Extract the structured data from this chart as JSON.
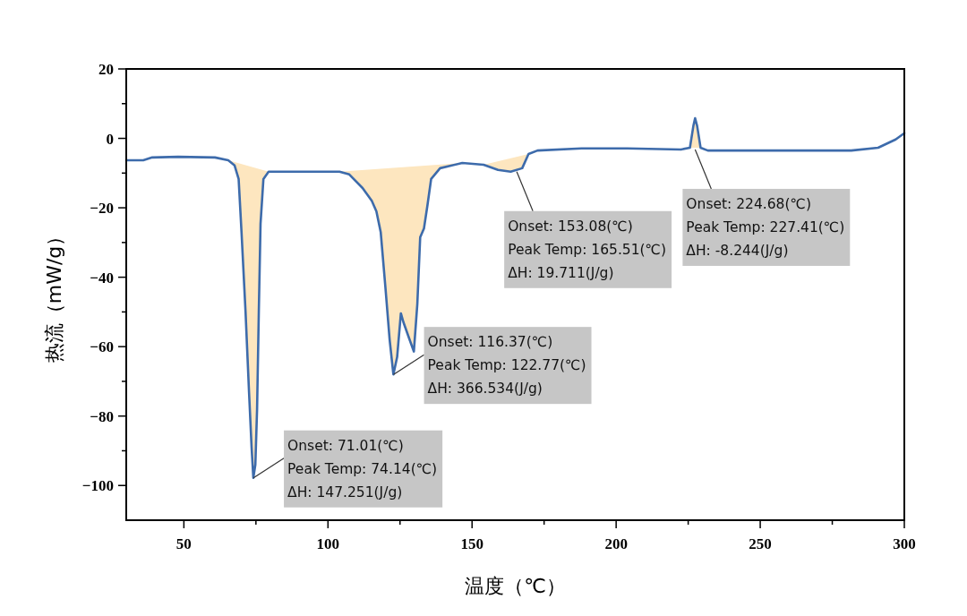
{
  "chart_data": {
    "type": "line",
    "xlabel": "温度（℃）",
    "ylabel": "热流（mW/g）",
    "xlim": [
      30,
      300
    ],
    "ylim": [
      -110,
      20
    ],
    "xticks": [
      50,
      {
        "value": 75,
        "label": null
      },
      100,
      {
        "value": 125,
        "label": null
      },
      150,
      {
        "value": 175,
        "label": null
      },
      200,
      {
        "value": 225,
        "label": null
      },
      250,
      {
        "value": 275,
        "label": null
      },
      300
    ],
    "yticks": [
      {
        "value": -100,
        "label": "−100"
      },
      {
        "value": -90,
        "label": null
      },
      {
        "value": -80,
        "label": "−80"
      },
      {
        "value": -70,
        "label": null
      },
      {
        "value": -60,
        "label": "−60"
      },
      {
        "value": -50,
        "label": null
      },
      {
        "value": -40,
        "label": "−40"
      },
      {
        "value": -30,
        "label": null
      },
      {
        "value": -20,
        "label": "−20"
      },
      {
        "value": -10,
        "label": null
      },
      0,
      {
        "value": 10,
        "label": null
      },
      20
    ],
    "series": [
      {
        "type": "area",
        "color": "#fde6bf",
        "x": [
          65.4,
          67.6,
          69,
          70,
          71.4,
          72.6,
          73.5,
          74.1,
          74.8,
          75.4,
          76,
          76.6,
          77.6,
          79.4,
          null,
          104,
          107.4,
          112,
          115.2,
          116.8,
          118.3,
          119.9,
          121.4,
          122.7,
          124,
          125.3,
          126.2,
          127.9,
          129.8,
          131,
          132,
          133.3,
          134.5,
          135.8,
          138.9,
          146.6,
          null,
          154,
          159,
          163.4,
          167.4,
          169.6,
          null,
          225.6,
          226.8,
          227.4,
          228.1,
          229.3
        ],
        "values": [
          -6.3,
          -7.8,
          -11.7,
          -27,
          -50,
          -73,
          -89,
          -97.8,
          -94,
          -78,
          -50,
          -24.6,
          -11.7,
          -9.6,
          null,
          -9.6,
          -10.4,
          -14.3,
          -18,
          -21,
          -27,
          -42.6,
          -58,
          -68,
          -63,
          -50.4,
          -53,
          -57,
          -61.4,
          -47.8,
          -28.5,
          -26,
          -19.4,
          -11.7,
          -8.6,
          -7.1,
          null,
          -7.6,
          -9.1,
          -9.6,
          -8.6,
          -4.5,
          null,
          -2.7,
          3.6,
          5.8,
          3.6,
          -2.7
        ],
        "name": null
      },
      {
        "color": "#3d6bab",
        "x": [
          30,
          35.9,
          39,
          48,
          60.8,
          65.4,
          67.6,
          69,
          70,
          71.4,
          72.6,
          73.5,
          74.1,
          74.8,
          75.4,
          76,
          76.6,
          77.6,
          79.4,
          88.8,
          104,
          107.4,
          112,
          115.2,
          116.8,
          118.3,
          119.9,
          121.4,
          122.7,
          124,
          125.3,
          126.2,
          127.9,
          129.8,
          131,
          132,
          133.3,
          134.5,
          135.8,
          138.9,
          146.6,
          154,
          159,
          163.4,
          167.4,
          169.6,
          172.7,
          188,
          203.8,
          222.5,
          225.6,
          226.8,
          227.4,
          228.1,
          229.3,
          231.8,
          250.5,
          281.6,
          290.9,
          297,
          300
        ],
        "values": [
          -6.3,
          -6.3,
          -5.5,
          -5.3,
          -5.5,
          -6.3,
          -7.8,
          -11.7,
          -27,
          -50,
          -73,
          -89,
          -97.8,
          -94,
          -78,
          -50,
          -24.6,
          -11.7,
          -9.6,
          -9.6,
          -9.6,
          -10.4,
          -14.3,
          -18,
          -21,
          -27,
          -42.6,
          -58,
          -68,
          -63,
          -50.4,
          -53,
          -57,
          -61.4,
          -47.8,
          -28.5,
          -26,
          -19.4,
          -11.7,
          -8.6,
          -7.1,
          -7.6,
          -9.1,
          -9.6,
          -8.6,
          -4.5,
          -3.5,
          -2.9,
          -2.9,
          -3.2,
          -2.7,
          3.6,
          5.8,
          3.6,
          -2.7,
          -3.5,
          -3.5,
          -3.5,
          -2.7,
          -0.3,
          1.5
        ]
      }
    ],
    "annotations": [
      {
        "text": "Onset: 71.01(℃)\nPeak Temp: 74.14(℃)\nΔH: 147.251(J/g)",
        "x": 74.14,
        "y": -97.8
      },
      {
        "text": "Onset: 116.37(℃)\nPeak Temp: 122.77(℃)\nΔH: 366.534(J/g)",
        "x": 122.77,
        "y": -68
      },
      {
        "text": "Onset: 153.08(℃)\nPeak Temp: 165.51(℃)\nΔH: 19.711(J/g)",
        "x": 165.51,
        "y": -9.6
      },
      {
        "text": "Onset: 224.68(℃)\nPeak Temp: 227.41(℃)\nΔH: -8.244(J/g)",
        "x": 227.41,
        "y": -3.2
      }
    ]
  }
}
